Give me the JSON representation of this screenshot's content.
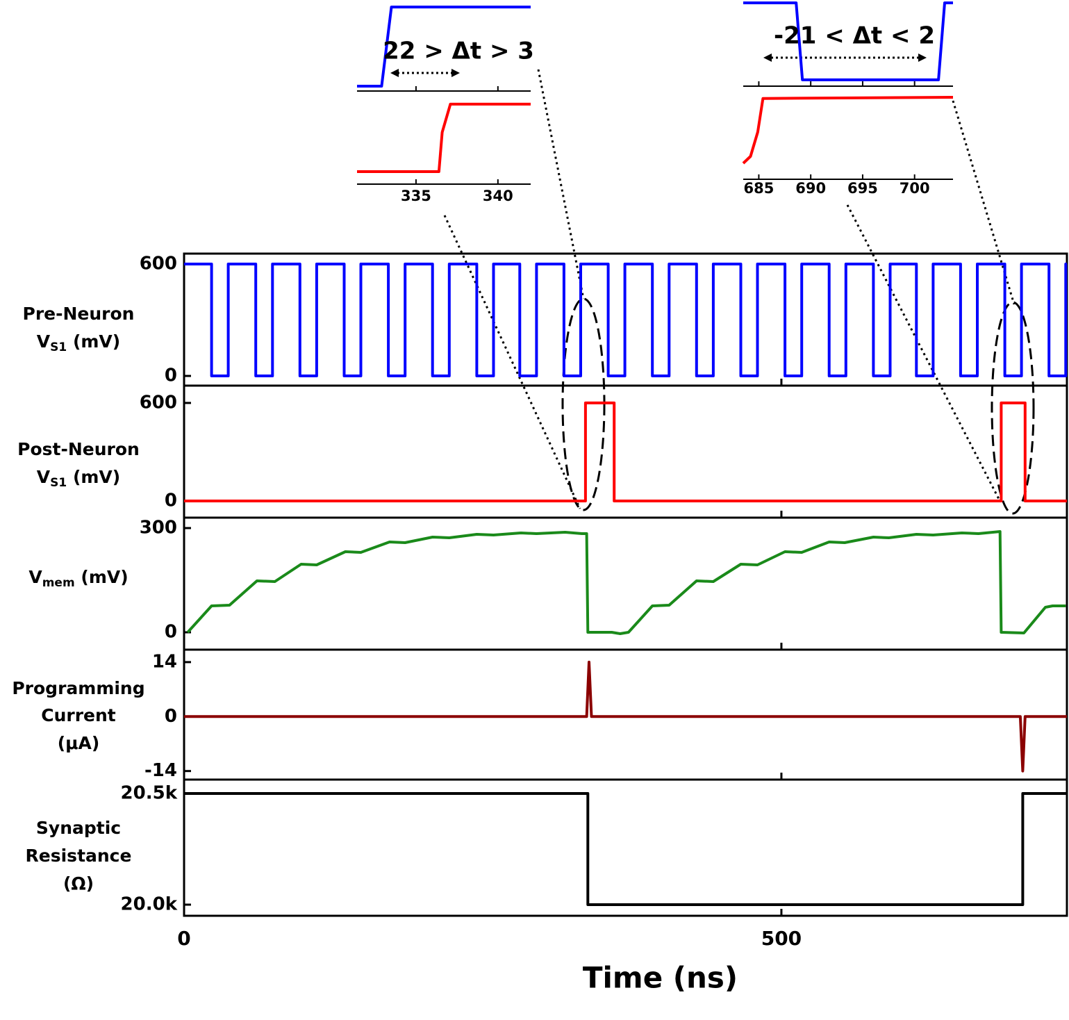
{
  "chart_data": [
    {
      "type": "line",
      "ylabel": [
        "Pre-Neuron",
        [
          "V",
          "S1",
          " (mV)"
        ]
      ],
      "xlim": [
        0,
        739
      ],
      "ylim": [
        -52,
        656
      ],
      "yticks": [
        0,
        600
      ],
      "series": [
        {
          "color": "#0000ff",
          "x": [
            0,
            23,
            23,
            37,
            37,
            60,
            60,
            74,
            74,
            97,
            97,
            111,
            111,
            134,
            134,
            148,
            148,
            171,
            171,
            185,
            185,
            208,
            208,
            222,
            222,
            245,
            245,
            259,
            259,
            281,
            281,
            295,
            295,
            318,
            318,
            332,
            332,
            355,
            355,
            369,
            369,
            392,
            392,
            406,
            406,
            429,
            429,
            443,
            443,
            466,
            466,
            480,
            480,
            503,
            503,
            517,
            517,
            540,
            540,
            554,
            554,
            577,
            577,
            591,
            591,
            613,
            613,
            627,
            627,
            650,
            650,
            664,
            664,
            687,
            687,
            701,
            701,
            724,
            724,
            738,
            738,
            739
          ],
          "values": [
            600,
            600,
            0,
            0,
            600,
            600,
            0,
            0,
            600,
            600,
            0,
            0,
            600,
            600,
            0,
            0,
            600,
            600,
            0,
            0,
            600,
            600,
            0,
            0,
            600,
            600,
            0,
            0,
            600,
            600,
            0,
            0,
            600,
            600,
            0,
            0,
            600,
            600,
            0,
            0,
            600,
            600,
            0,
            0,
            600,
            600,
            0,
            0,
            600,
            600,
            0,
            0,
            600,
            600,
            0,
            0,
            600,
            600,
            0,
            0,
            600,
            600,
            0,
            0,
            600,
            600,
            0,
            0,
            600,
            600,
            0,
            0,
            600,
            600,
            0,
            0,
            600,
            600,
            0,
            0,
            600,
            600
          ]
        }
      ]
    },
    {
      "type": "line",
      "ylabel": [
        "Post-Neuron",
        [
          "V",
          "S1",
          " (mV)"
        ]
      ],
      "xlim": [
        0,
        739
      ],
      "ylim": [
        -102,
        706
      ],
      "yticks": [
        0,
        600
      ],
      "series": [
        {
          "color": "#ff0000",
          "x": [
            0,
            336,
            336,
            360,
            360,
            684,
            684,
            704,
            704,
            739
          ],
          "values": [
            0,
            0,
            600,
            600,
            0,
            0,
            600,
            600,
            0,
            0
          ]
        }
      ]
    },
    {
      "type": "line",
      "ylabel": [
        [
          "V",
          "mem",
          " (mV)"
        ]
      ],
      "xlim": [
        0,
        739
      ],
      "ylim": [
        -50,
        330
      ],
      "yticks": [
        0,
        300
      ],
      "series": [
        {
          "color": "#1a8a1a",
          "x": [
            3,
            23,
            38,
            61,
            76,
            98,
            111,
            135,
            148,
            172,
            185,
            208,
            222,
            245,
            259,
            282,
            295,
            319,
            333,
            337,
            338,
            358,
            365,
            372,
            392,
            406,
            429,
            443,
            466,
            480,
            503,
            517,
            540,
            553,
            577,
            590,
            613,
            627,
            651,
            665,
            683,
            684,
            703,
            721,
            727,
            738
          ],
          "values": [
            0,
            76,
            78,
            148,
            146,
            196,
            194,
            232,
            230,
            260,
            258,
            274,
            272,
            282,
            280,
            286,
            284,
            288,
            284,
            284,
            0,
            0,
            -4,
            0,
            76,
            78,
            148,
            146,
            196,
            194,
            232,
            230,
            260,
            258,
            274,
            272,
            282,
            280,
            286,
            284,
            290,
            0,
            -2,
            72,
            76,
            76
          ]
        }
      ]
    },
    {
      "type": "line",
      "ylabel": [
        "Programming",
        "Current",
        "(μA)"
      ],
      "xlim": [
        0,
        739
      ],
      "ylim": [
        -16.2,
        17.2
      ],
      "yticks": [
        -14,
        0,
        14
      ],
      "series": [
        {
          "color": "#8b0000",
          "x": [
            0,
            337,
            339,
            341,
            700,
            702,
            704,
            739
          ],
          "values": [
            0,
            0,
            14,
            0,
            0,
            -14,
            0,
            0
          ]
        }
      ]
    },
    {
      "type": "line",
      "ylabel": [
        "Synaptic",
        "Resistance",
        "(Ω)"
      ],
      "xlim": [
        0,
        739
      ],
      "ylim": [
        19950,
        20562.5
      ],
      "yticks": [
        {
          "value": 20000,
          "label": "20.0k"
        },
        {
          "value": 20500,
          "label": "20.5k"
        }
      ],
      "xticks": [
        0,
        500
      ],
      "xlabel": "Time (ns)",
      "series": [
        {
          "color": "#000000",
          "x": [
            0,
            338,
            338,
            702,
            702,
            739
          ],
          "values": [
            20500,
            20500,
            20000,
            20000,
            20500,
            20500
          ]
        }
      ]
    },
    {
      "type": "inset",
      "xlim": [
        331.4,
        342
      ],
      "xticks": [
        335,
        340
      ],
      "annotation": "22 > Δt > 3",
      "series": [
        {
          "color": "#0000ff",
          "ylim": [
            -37,
            653
          ],
          "x": [
            331.4,
            332.9,
            333.5,
            342
          ],
          "values": [
            0,
            0,
            600,
            600
          ]
        },
        {
          "color": "#ff0000",
          "ylim": [
            -111,
            717
          ],
          "x": [
            331.4,
            336.4,
            336.6,
            337.1,
            342
          ],
          "values": [
            0,
            0,
            350,
            600,
            600
          ]
        }
      ]
    },
    {
      "type": "inset",
      "xlim": [
        683.5,
        703.7
      ],
      "xticks": [
        685,
        690,
        695,
        700
      ],
      "annotation": "-21 < Δt < 2",
      "series": [
        {
          "color": "#0000ff",
          "ylim": [
            -49,
            622
          ],
          "x": [
            683.5,
            688.6,
            689.2,
            702.3,
            702.9,
            703.7
          ],
          "values": [
            600,
            600,
            0,
            0,
            600,
            600
          ]
        },
        {
          "color": "#ff0000",
          "ylim": [
            -108,
            696
          ],
          "x": [
            683.5,
            684.2,
            684.9,
            685.4,
            703.7
          ],
          "values": [
            30,
            90,
            300,
            590,
            600
          ]
        }
      ]
    }
  ]
}
